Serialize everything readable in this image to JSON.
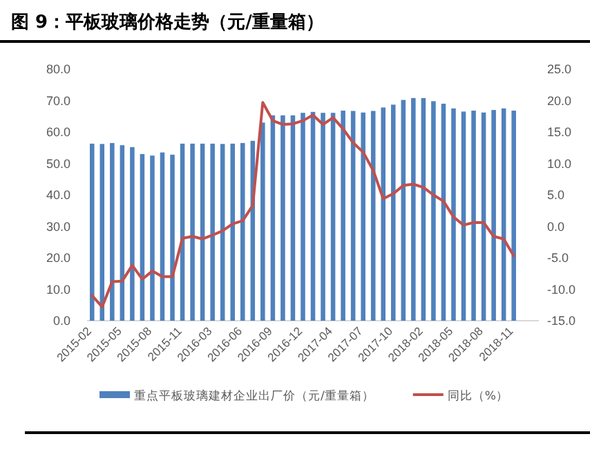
{
  "chart_data": {
    "type": "bar",
    "title": "图 9：平板玻璃价格走势（元/重量箱）",
    "categories": [
      "2015-02",
      null,
      null,
      "2015-05",
      null,
      null,
      "2015-08",
      null,
      null,
      "2015-11",
      null,
      null,
      "2016-03",
      null,
      null,
      "2016-06",
      null,
      null,
      "2016-09",
      null,
      null,
      "2016-12",
      null,
      null,
      "2017-04",
      null,
      null,
      "2017-07",
      null,
      null,
      "2017-10",
      null,
      null,
      "2018-02",
      null,
      null,
      "2018-05",
      null,
      null,
      "2018-08",
      null,
      null,
      "2018-11",
      null,
      null
    ],
    "series": [
      {
        "name": "重点平板玻璃建材企业出厂价（元/重量箱）",
        "color": "#4f81bd",
        "values": [
          56.3,
          56.2,
          56.5,
          55.8,
          55.2,
          53.0,
          52.5,
          53.5,
          52.8,
          56.3,
          56.3,
          56.3,
          56.3,
          56.2,
          56.3,
          56.5,
          57.2,
          63.0,
          65.3,
          65.3,
          65.3,
          66.1,
          66.4,
          66.1,
          66.1,
          66.8,
          66.7,
          66.2,
          66.7,
          67.8,
          68.7,
          70.2,
          70.8,
          70.8,
          69.8,
          69.0,
          67.5,
          66.5,
          66.8,
          66.2,
          67.0,
          67.5,
          66.8,
          null,
          null
        ]
      },
      {
        "name": "同比（%）",
        "type": "line",
        "axis": "y2",
        "color": "#c0504d",
        "values": [
          -11.0,
          -12.8,
          -8.8,
          -8.7,
          -6.2,
          -8.4,
          -7.1,
          -8.0,
          -8.0,
          -1.9,
          -1.6,
          -2.0,
          -1.4,
          -0.7,
          0.4,
          0.9,
          3.3,
          19.7,
          16.8,
          16.2,
          16.3,
          16.8,
          17.7,
          16.2,
          17.3,
          15.5,
          13.3,
          11.8,
          8.9,
          4.4,
          5.2,
          6.5,
          6.7,
          6.2,
          5.0,
          4.0,
          1.5,
          0.2,
          0.6,
          0.6,
          -1.6,
          -2.0,
          -4.7,
          null,
          null
        ]
      }
    ],
    "ylim": [
      0,
      80
    ],
    "yticks": [
      {
        "value": 0,
        "label": "0.0"
      },
      {
        "value": 10,
        "label": "10.0"
      },
      {
        "value": 20,
        "label": "20.0"
      },
      {
        "value": 30,
        "label": "30.0"
      },
      {
        "value": 40,
        "label": "40.0"
      },
      {
        "value": 50,
        "label": "50.0"
      },
      {
        "value": 60,
        "label": "60.0"
      },
      {
        "value": 70,
        "label": "70.0"
      },
      {
        "value": 80,
        "label": "80.0"
      }
    ],
    "y2lim": [
      -15,
      25
    ],
    "y2ticks": [
      {
        "value": -15,
        "label": "-15.0"
      },
      {
        "value": -10,
        "label": "-10.0"
      },
      {
        "value": -5,
        "label": "-5.0"
      },
      {
        "value": 0,
        "label": "0.0"
      },
      {
        "value": 5,
        "label": "5.0"
      },
      {
        "value": 10,
        "label": "10.0"
      },
      {
        "value": 15,
        "label": "15.0"
      },
      {
        "value": 20,
        "label": "20.0"
      },
      {
        "value": 25,
        "label": "25.0"
      }
    ],
    "legend": "bottom"
  }
}
